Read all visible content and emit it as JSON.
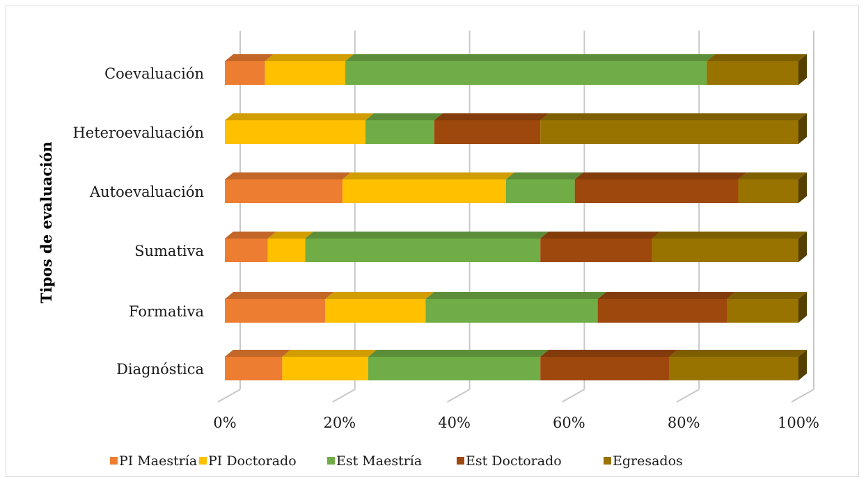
{
  "chart_data": {
    "type": "bar",
    "orientation": "horizontal",
    "stacked": "percent",
    "three_d": true,
    "ylabel": "Tipos de evaluación",
    "xlabel": "",
    "categories": [
      "Diagnóstica",
      "Formativa",
      "Sumativa",
      "Autoevaluación",
      "Heteroevaluación",
      "Coevaluación"
    ],
    "xlim": [
      0,
      100
    ],
    "x_ticks": [
      "0%",
      "20%",
      "40%",
      "60%",
      "80%",
      "100%"
    ],
    "grid": true,
    "legend_position": "bottom",
    "series": [
      {
        "name": "PI Maestría",
        "color": "#ED7D31",
        "values": [
          10,
          17.5,
          7.5,
          20.5,
          0,
          7
        ]
      },
      {
        "name": "PI Doctorado",
        "color": "#FFC000",
        "values": [
          15,
          17.5,
          6.5,
          28.5,
          24.5,
          14
        ]
      },
      {
        "name": "Est Maestría",
        "color": "#70AD47",
        "values": [
          30,
          30,
          41,
          12,
          12,
          63
        ]
      },
      {
        "name": "Est Doctorado",
        "color": "#9E480E",
        "values": [
          22.5,
          22.5,
          19.5,
          28.5,
          18.5,
          0
        ]
      },
      {
        "name": "Egresados",
        "color": "#997300",
        "values": [
          22.5,
          12.5,
          25.5,
          10.5,
          45,
          16
        ]
      }
    ]
  }
}
